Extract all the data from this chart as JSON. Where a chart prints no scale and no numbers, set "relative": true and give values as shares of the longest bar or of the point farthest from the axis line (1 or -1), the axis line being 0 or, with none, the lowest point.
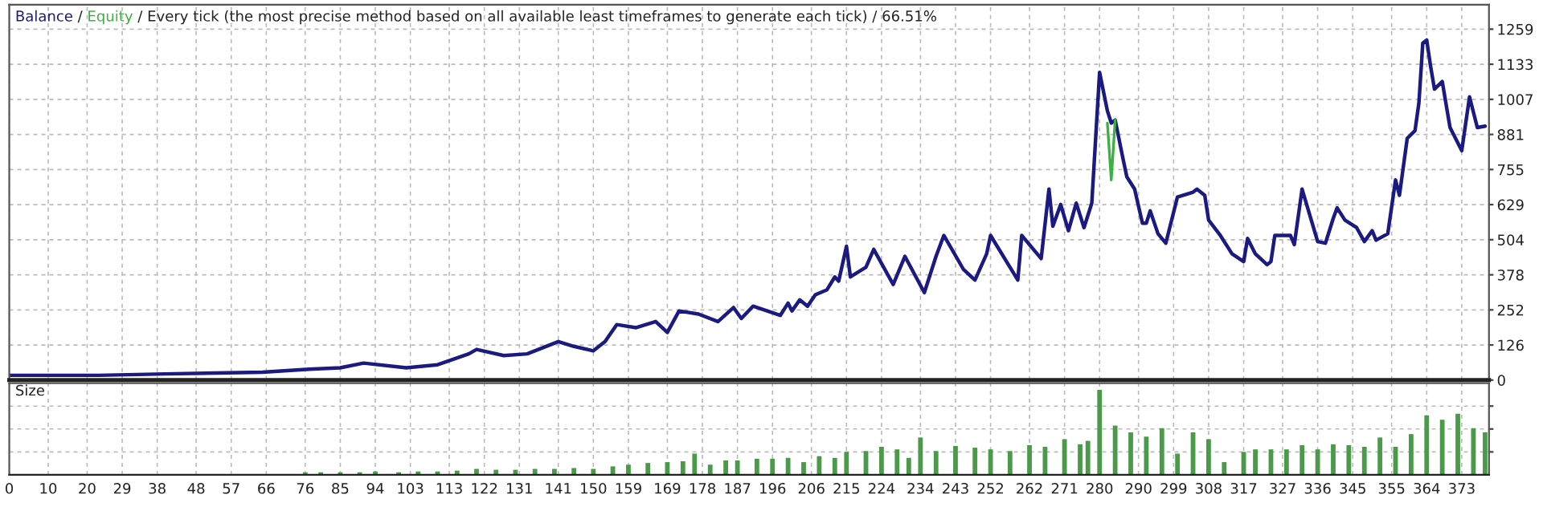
{
  "chart_data": [
    {
      "type": "line",
      "title": "/ Every tick (the most precise method based on all available least timeframes to generate each tick) / 66.51%",
      "xlim": [
        0,
        380
      ],
      "xticks": [
        0,
        10,
        20,
        29,
        38,
        48,
        57,
        66,
        76,
        85,
        94,
        103,
        113,
        122,
        131,
        141,
        150,
        159,
        169,
        178,
        187,
        196,
        206,
        215,
        224,
        234,
        243,
        252,
        262,
        271,
        280,
        290,
        299,
        308,
        317,
        327,
        336,
        345,
        355,
        364,
        373
      ],
      "ylim": [
        0,
        1347
      ],
      "yticks": [
        0,
        {
          "value": 125.9,
          "label": "126"
        },
        {
          "value": 251.8,
          "label": "252"
        },
        {
          "value": 377.7,
          "label": "378"
        },
        {
          "value": 503.6,
          "label": "504"
        },
        {
          "value": 629.5,
          "label": "629"
        },
        {
          "value": 755.4,
          "label": "755"
        },
        {
          "value": 881.3,
          "label": "881"
        },
        {
          "value": 1007.2,
          "label": "1007"
        },
        {
          "value": 1133.1,
          "label": "1133"
        },
        1259
      ],
      "annotations": [
        "/"
      ],
      "grid": true,
      "legend": false,
      "tick_labels": "y",
      "marker": "none",
      "line_style": "solid",
      "series": [
        {
          "name": "Balance",
          "color": "#1a1a80",
          "x": [
            0,
            23,
            40,
            65,
            77,
            85,
            91,
            102,
            110,
            118,
            120,
            127,
            133,
            141,
            145,
            150,
            153,
            156,
            161,
            166,
            169,
            172,
            177,
            182,
            186,
            188,
            191,
            198,
            200,
            201,
            203,
            205,
            207,
            210,
            212,
            213,
            215,
            216,
            220,
            222,
            227,
            230,
            235,
            238,
            240,
            245,
            248,
            251,
            252,
            259,
            260,
            265,
            267,
            268,
            270,
            272,
            274,
            276,
            278,
            280,
            282,
            283,
            284,
            286,
            287,
            289,
            291,
            292,
            293,
            295,
            297,
            300,
            304,
            305,
            307,
            308,
            311,
            314,
            317,
            318,
            320,
            323,
            324,
            325,
            329,
            330,
            332,
            336,
            338,
            340,
            341,
            343,
            346,
            348,
            350,
            351,
            354,
            356,
            357,
            359,
            361,
            362,
            363,
            364,
            365,
            366,
            368,
            369,
            370,
            373,
            375,
            377,
            379
          ],
          "values": [
            17,
            17,
            22,
            28,
            39,
            44,
            61,
            44,
            55,
            94,
            110,
            88,
            94,
            138,
            121,
            105,
            138,
            199,
            188,
            210,
            171,
            248,
            237,
            210,
            260,
            221,
            265,
            232,
            276,
            248,
            288,
            265,
            306,
            324,
            370,
            355,
            480,
            370,
            405,
            469,
            343,
            444,
            314,
            444,
            519,
            398,
            359,
            453,
            519,
            359,
            519,
            436,
            685,
            552,
            630,
            536,
            635,
            547,
            635,
            1104,
            966,
            922,
            933,
            795,
            729,
            685,
            563,
            563,
            607,
            525,
            491,
            657,
            674,
            685,
            663,
            574,
            519,
            453,
            425,
            508,
            453,
            414,
            425,
            519,
            519,
            486,
            685,
            497,
            491,
            580,
            618,
            574,
            547,
            497,
            536,
            502,
            525,
            718,
            663,
            867,
            895,
            994,
            1209,
            1220,
            1126,
            1044,
            1071,
            988,
            906,
            823,
            1016,
            906,
            911
          ]
        },
        {
          "name": "Equity",
          "color": "#3cb043",
          "x": [
            282,
            283,
            284
          ],
          "values": [
            922,
            718,
            933
          ]
        }
      ]
    },
    {
      "type": "bar",
      "title": "Size",
      "relative": true,
      "color": "#4a9a4a",
      "grid": true,
      "legend": false,
      "tick_labels": "x",
      "xlim": [
        0,
        380
      ],
      "xticks": [
        0,
        10,
        20,
        29,
        38,
        48,
        57,
        66,
        76,
        85,
        94,
        103,
        113,
        122,
        131,
        141,
        150,
        159,
        169,
        178,
        187,
        196,
        206,
        215,
        224,
        234,
        243,
        252,
        262,
        271,
        280,
        290,
        299,
        308,
        317,
        327,
        336,
        345,
        355,
        364,
        373
      ],
      "x": [
        76,
        80,
        85,
        90,
        94,
        100,
        105,
        110,
        115,
        120,
        125,
        130,
        135,
        140,
        145,
        150,
        155,
        159,
        164,
        169,
        173,
        176,
        180,
        184,
        187,
        192,
        196,
        200,
        204,
        208,
        212,
        215,
        220,
        224,
        228,
        231,
        234,
        238,
        243,
        248,
        252,
        257,
        262,
        266,
        271,
        275,
        277,
        280,
        284,
        288,
        292,
        296,
        300,
        304,
        308,
        312,
        317,
        320,
        324,
        328,
        332,
        336,
        340,
        344,
        348,
        352,
        356,
        360,
        364,
        368,
        372,
        376,
        379
      ],
      "values": [
        0.03,
        0.03,
        0.03,
        0.03,
        0.04,
        0.03,
        0.04,
        0.04,
        0.05,
        0.07,
        0.06,
        0.06,
        0.07,
        0.07,
        0.08,
        0.07,
        0.1,
        0.12,
        0.14,
        0.15,
        0.16,
        0.25,
        0.12,
        0.17,
        0.17,
        0.19,
        0.19,
        0.2,
        0.15,
        0.22,
        0.2,
        0.27,
        0.28,
        0.33,
        0.3,
        0.2,
        0.44,
        0.28,
        0.34,
        0.32,
        0.3,
        0.28,
        0.35,
        0.33,
        0.42,
        0.36,
        0.4,
        1.0,
        0.58,
        0.5,
        0.45,
        0.55,
        0.25,
        0.5,
        0.42,
        0.15,
        0.27,
        0.3,
        0.3,
        0.3,
        0.35,
        0.3,
        0.36,
        0.35,
        0.33,
        0.44,
        0.33,
        0.48,
        0.7,
        0.65,
        0.72,
        0.55,
        0.5
      ]
    }
  ]
}
